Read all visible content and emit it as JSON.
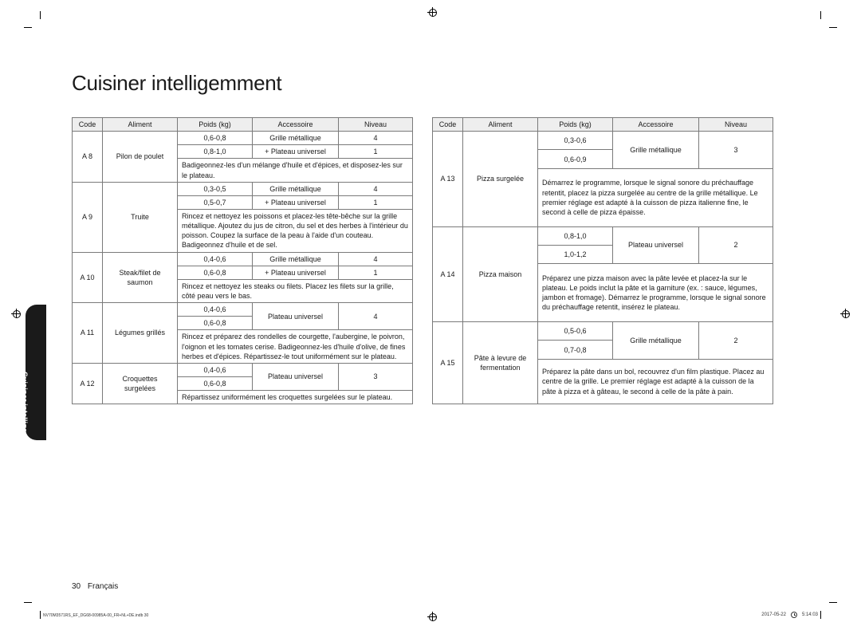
{
  "title": "Cuisiner intelligemment",
  "side_tab": "Cuisiner intelligemment",
  "headers": {
    "code": "Code",
    "aliment": "Aliment",
    "poids": "Poids (kg)",
    "accessoire": "Accessoire",
    "niveau": "Niveau"
  },
  "left": [
    {
      "code": "A 8",
      "aliment": "Pilon de poulet",
      "rows": [
        {
          "poids": "0,6-0,8",
          "acc": "Grille métallique",
          "niv": "4"
        },
        {
          "poids": "0,8-1,0",
          "acc": "+ Plateau universel",
          "niv": "1"
        }
      ],
      "inst": "Badigeonnez-les d'un mélange d'huile et d'épices, et disposez-les sur le plateau."
    },
    {
      "code": "A 9",
      "aliment": "Truite",
      "rows": [
        {
          "poids": "0,3-0,5",
          "acc": "Grille métallique",
          "niv": "4"
        },
        {
          "poids": "0,5-0,7",
          "acc": "+ Plateau universel",
          "niv": "1"
        }
      ],
      "inst": "Rincez et nettoyez les poissons et placez-les tête-bêche sur la grille métallique. Ajoutez du jus de citron, du sel et des herbes à l'intérieur du poisson. Coupez la surface de la peau à l'aide d'un couteau. Badigeonnez d'huile et de sel."
    },
    {
      "code": "A 10",
      "aliment": "Steak/filet de saumon",
      "rows": [
        {
          "poids": "0,4-0,6",
          "acc": "Grille métallique",
          "niv": "4"
        },
        {
          "poids": "0,6-0,8",
          "acc": "+ Plateau universel",
          "niv": "1"
        }
      ],
      "inst": "Rincez et nettoyez les steaks ou filets. Placez les filets sur la grille, côté peau vers le bas."
    },
    {
      "code": "A 11",
      "aliment": "Légumes grillés",
      "rows": [
        {
          "poids": "0,4-0,6",
          "acc": "Plateau universel",
          "acc_rowspan": 2,
          "niv": "4",
          "niv_rowspan": 2
        },
        {
          "poids": "0,6-0,8"
        }
      ],
      "inst": "Rincez et préparez des rondelles de courgette, l'aubergine, le poivron, l'oignon et les tomates cerise. Badigeonnez-les d'huile d'olive, de fines herbes et d'épices. Répartissez-le tout uniformément sur le plateau."
    },
    {
      "code": "A 12",
      "aliment": "Croquettes surgelées",
      "rows": [
        {
          "poids": "0,4-0,6",
          "acc": "Plateau universel",
          "acc_rowspan": 2,
          "niv": "3",
          "niv_rowspan": 2
        },
        {
          "poids": "0,6-0,8"
        }
      ],
      "inst": "Répartissez uniformément les croquettes surgelées sur le plateau."
    }
  ],
  "right": [
    {
      "code": "A 13",
      "aliment": "Pizza surgelée",
      "rows": [
        {
          "poids": "0,3-0,6",
          "acc": "Grille métallique",
          "acc_rowspan": 2,
          "niv": "3",
          "niv_rowspan": 2
        },
        {
          "poids": "0,6-0,9"
        }
      ],
      "inst": "Démarrez le programme, lorsque le signal sonore du préchauffage retentit, placez la pizza surgelée au centre de la grille métallique. Le premier réglage est adapté à la cuisson de pizza italienne fine, le second à celle de pizza épaisse."
    },
    {
      "code": "A 14",
      "aliment": "Pizza maison",
      "rows": [
        {
          "poids": "0,8-1,0",
          "acc": "Plateau universel",
          "acc_rowspan": 2,
          "niv": "2",
          "niv_rowspan": 2
        },
        {
          "poids": "1,0-1,2"
        }
      ],
      "inst": "Préparez une pizza maison avec la pâte levée et placez-la sur le plateau. Le poids inclut la pâte et la garniture (ex. : sauce, légumes, jambon et fromage). Démarrez le programme, lorsque le signal sonore du préchauffage retentit, insérez le plateau."
    },
    {
      "code": "A 15",
      "aliment": "Pâte à levure de fermentation",
      "rows": [
        {
          "poids": "0,5-0,6",
          "acc": "Grille métallique",
          "acc_rowspan": 2,
          "niv": "2",
          "niv_rowspan": 2
        },
        {
          "poids": "0,7-0,8"
        }
      ],
      "inst": "Préparez la pâte dans un bol, recouvrez d'un film plastique. Placez au centre de la grille. Le premier réglage est adapté à la cuisson de la pâte à pizza et à gâteau, le second à celle de la pâte à pain."
    }
  ],
  "footer": {
    "page": "30",
    "lang": "Français"
  },
  "print": {
    "left": "NV70M3571RS_EF_DG68-00985A-00_FR+NL+DE.indb   30",
    "date": "2017-05-22",
    "time": "5:14:03"
  }
}
